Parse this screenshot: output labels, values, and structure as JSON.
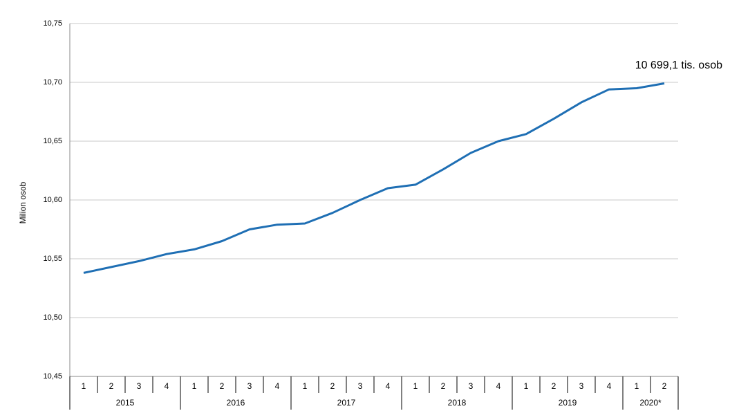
{
  "chart_data": {
    "type": "line",
    "y_label": "Milion osob",
    "annotation": "10 699,1 tis. osob",
    "categories": [
      "1",
      "2",
      "3",
      "4",
      "1",
      "2",
      "3",
      "4",
      "1",
      "2",
      "3",
      "4",
      "1",
      "2",
      "3",
      "4",
      "1",
      "2",
      "3",
      "4",
      "1",
      "2"
    ],
    "groups": [
      {
        "label": "2015",
        "count": 4
      },
      {
        "label": "2016",
        "count": 4
      },
      {
        "label": "2017",
        "count": 4
      },
      {
        "label": "2018",
        "count": 4
      },
      {
        "label": "2019",
        "count": 4
      },
      {
        "label": "2020*",
        "count": 2
      }
    ],
    "color": "#1f6fb4",
    "values": [
      10.538,
      10.543,
      10.548,
      10.554,
      10.558,
      10.565,
      10.575,
      10.579,
      10.58,
      10.589,
      10.6,
      10.61,
      10.613,
      10.626,
      10.64,
      10.65,
      10.656,
      10.669,
      10.683,
      10.694,
      10.695,
      10.6991
    ],
    "ylim": [
      10.45,
      10.75
    ],
    "yticks": [
      {
        "value": 10.45,
        "label": "10,45"
      },
      {
        "value": 10.5,
        "label": "10,50"
      },
      {
        "value": 10.55,
        "label": "10,55"
      },
      {
        "value": 10.6,
        "label": "10,60"
      },
      {
        "value": 10.65,
        "label": "10,65"
      },
      {
        "value": 10.7,
        "label": "10,70"
      },
      {
        "value": 10.75,
        "label": "10,75"
      }
    ],
    "grid": true
  }
}
